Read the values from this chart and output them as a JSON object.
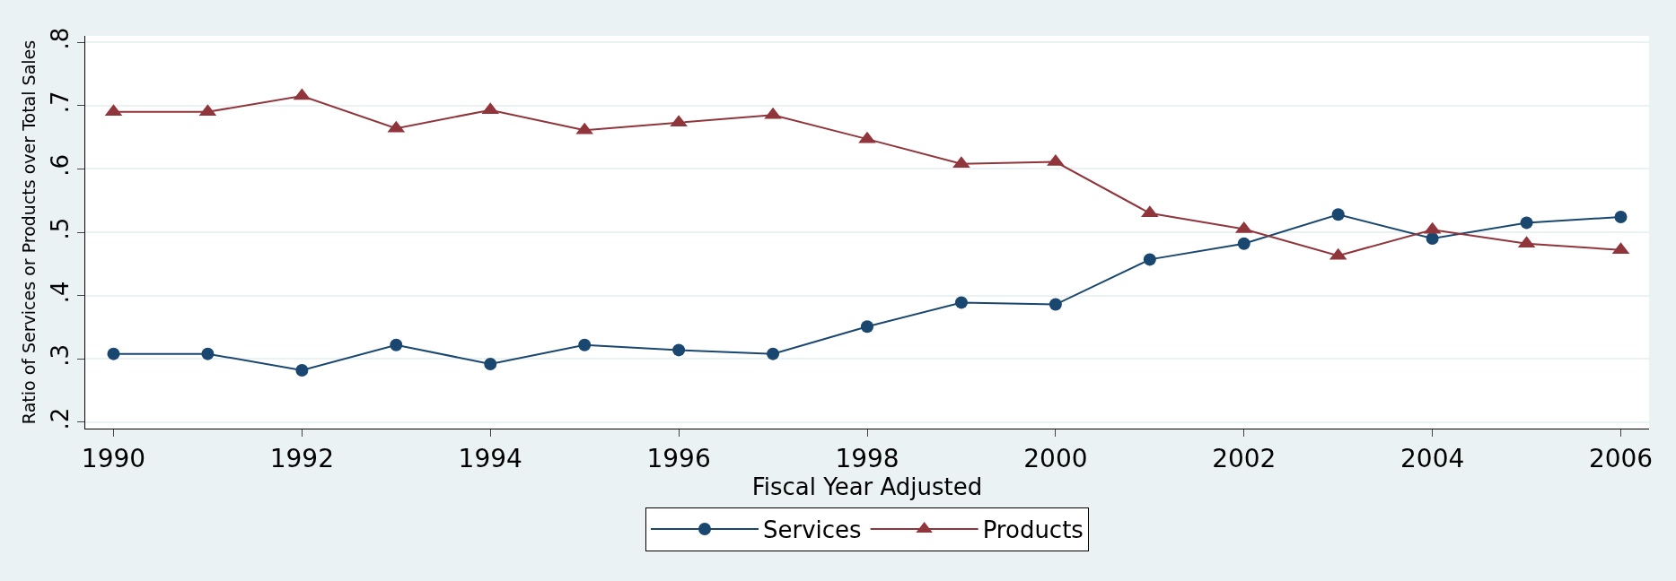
{
  "chart_data": {
    "type": "line",
    "xlabel": "Fiscal Year Adjusted",
    "ylabel": "Ratio of Services or Products over Total Sales",
    "x": [
      1990,
      1991,
      1992,
      1993,
      1994,
      1995,
      1996,
      1997,
      1998,
      1999,
      2000,
      2001,
      2002,
      2003,
      2004,
      2005,
      2006
    ],
    "series": [
      {
        "name": "Services",
        "color": "#1a476f",
        "marker": "circle",
        "values": [
          0.308,
          0.308,
          0.282,
          0.322,
          0.292,
          0.322,
          0.314,
          0.308,
          0.351,
          0.389,
          0.386,
          0.457,
          0.482,
          0.528,
          0.49,
          0.515,
          0.524
        ]
      },
      {
        "name": "Products",
        "color": "#90353b",
        "marker": "triangle",
        "values": [
          0.69,
          0.69,
          0.715,
          0.664,
          0.693,
          0.661,
          0.673,
          0.685,
          0.647,
          0.608,
          0.611,
          0.53,
          0.505,
          0.463,
          0.504,
          0.482,
          0.472
        ]
      }
    ],
    "xlim": [
      1989.7,
      2006.3
    ],
    "xticks": [
      1990,
      1992,
      1994,
      1996,
      1998,
      2000,
      2002,
      2004,
      2006
    ],
    "ylim": [
      0.19,
      0.81
    ],
    "yticks": [
      {
        "value": 0.2,
        "label": ".2"
      },
      {
        "value": 0.3,
        "label": ".3"
      },
      {
        "value": 0.4,
        "label": ".4"
      },
      {
        "value": 0.5,
        "label": ".5"
      },
      {
        "value": 0.6,
        "label": ".6"
      },
      {
        "value": 0.7,
        "label": ".7"
      },
      {
        "value": 0.8,
        "label": ".8"
      }
    ],
    "grid": "y",
    "legend": "bottom",
    "line_style": "solid"
  }
}
